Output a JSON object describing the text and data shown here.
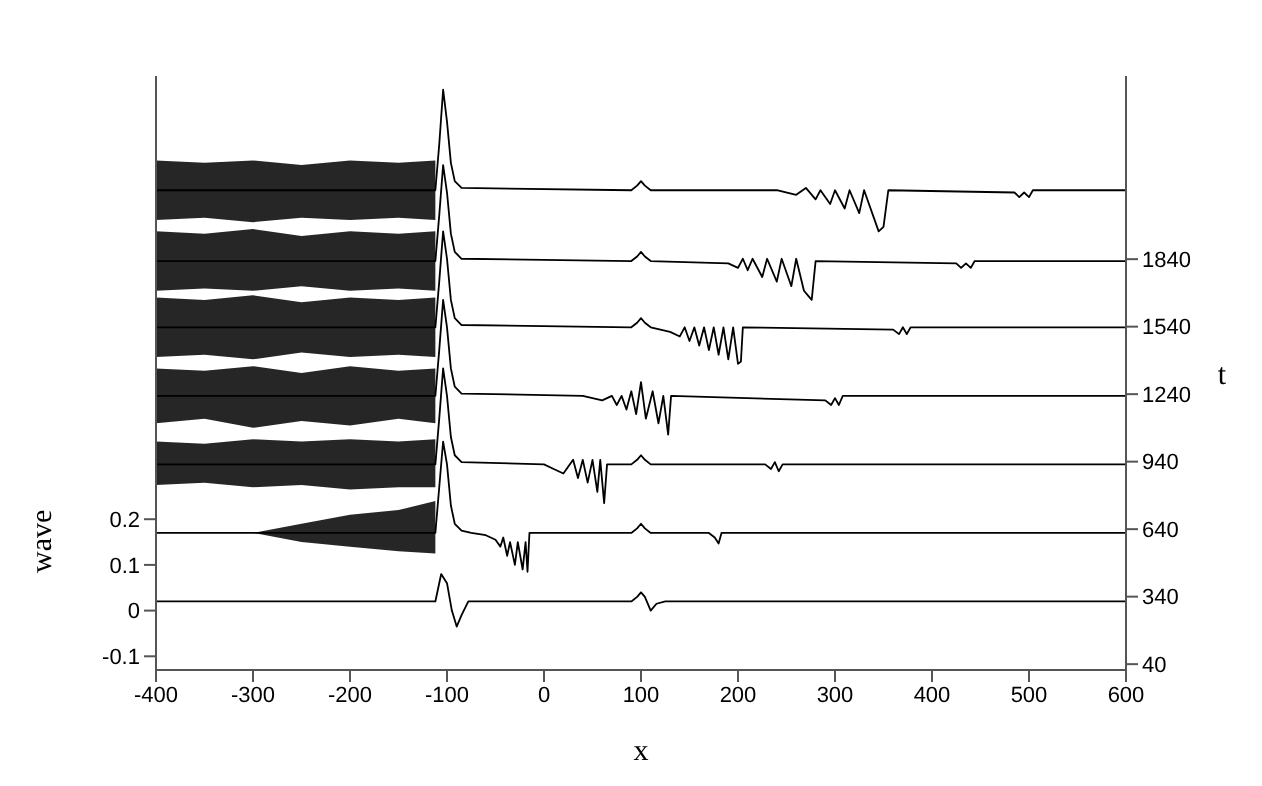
{
  "chart_data": {
    "type": "line",
    "xlabel": "x",
    "ylabel": "wave",
    "y2label": "t",
    "xlim": [
      -400,
      600
    ],
    "xticks": [
      -400,
      -300,
      -200,
      -100,
      0,
      100,
      200,
      300,
      400,
      500,
      600
    ],
    "ylim": [
      -0.13,
      1.17
    ],
    "yticks": [
      -0.1,
      0,
      0.1,
      0.2
    ],
    "y2lim": [
      14,
      2654
    ],
    "y2ticks": [
      40,
      340,
      640,
      940,
      1240,
      1540,
      1840
    ],
    "grid": false,
    "legend": false,
    "marker": "none",
    "line_style": "solid",
    "series": [
      {
        "color": "#000000",
        "x": [
          -400,
          -112,
          -106,
          -100,
          -95,
          -90,
          -85,
          -78,
          90,
          96,
          100,
          104,
          110,
          116,
          125,
          600
        ],
        "values": [
          0.02,
          0.02,
          0.08,
          0.06,
          0.0,
          -0.035,
          -0.01,
          0.02,
          0.02,
          0.03,
          0.04,
          0.03,
          0.0,
          0.015,
          0.02,
          0.02
        ]
      },
      {
        "color": "#000000",
        "x": [
          -400,
          -300,
          -250,
          -200,
          -150,
          -112,
          -108,
          -104,
          -100,
          -96,
          -92,
          -85,
          -75,
          -60,
          -50,
          -45,
          -42,
          -38,
          -35,
          -30,
          -27,
          -22,
          -19,
          -17,
          -15,
          90,
          96,
          100,
          104,
          110,
          170,
          176,
          180,
          183,
          190,
          600
        ],
        "values": [
          0.17,
          0.17,
          0.17,
          0.17,
          0.17,
          0.17,
          0.27,
          0.37,
          0.32,
          0.23,
          0.19,
          0.175,
          0.17,
          0.165,
          0.155,
          0.14,
          0.16,
          0.12,
          0.15,
          0.1,
          0.15,
          0.09,
          0.15,
          0.085,
          0.17,
          0.17,
          0.18,
          0.19,
          0.18,
          0.17,
          0.17,
          0.16,
          0.147,
          0.17,
          0.17,
          0.17
        ],
        "lower": [
          0.17,
          0.17,
          0.15,
          0.14,
          0.13,
          0.125,
          null,
          null,
          null,
          null,
          null,
          null,
          null,
          null,
          null,
          null,
          null,
          null,
          null,
          null,
          null,
          null,
          null,
          null,
          null,
          null,
          null,
          null,
          null,
          null,
          null,
          null,
          null,
          null,
          null,
          null
        ],
        "upper": [
          0.17,
          0.17,
          0.19,
          0.21,
          0.22,
          0.24,
          null,
          null,
          null,
          null,
          null,
          null,
          null,
          null,
          null,
          null,
          null,
          null,
          null,
          null,
          null,
          null,
          null,
          null,
          null,
          null,
          null,
          null,
          null,
          null,
          null,
          null,
          null,
          null,
          null,
          null
        ]
      },
      {
        "color": "#000000",
        "x": [
          -400,
          -350,
          -300,
          -250,
          -200,
          -150,
          -112,
          -108,
          -104,
          -100,
          -96,
          -92,
          -85,
          0,
          10,
          20,
          30,
          35,
          40,
          45,
          50,
          55,
          58,
          62,
          65,
          90,
          96,
          100,
          104,
          110,
          228,
          234,
          238,
          242,
          246,
          250,
          600
        ],
        "values": [
          0.32,
          0.32,
          0.32,
          0.32,
          0.32,
          0.32,
          0.32,
          0.42,
          0.53,
          0.47,
          0.38,
          0.34,
          0.325,
          0.32,
          0.31,
          0.3,
          0.33,
          0.29,
          0.33,
          0.28,
          0.33,
          0.26,
          0.33,
          0.235,
          0.32,
          0.32,
          0.33,
          0.34,
          0.33,
          0.32,
          0.32,
          0.31,
          0.325,
          0.305,
          0.32,
          0.32,
          0.32
        ],
        "lower": [
          0.275,
          0.28,
          0.27,
          0.275,
          0.265,
          0.27,
          0.27,
          null,
          null,
          null,
          null,
          null,
          null,
          null,
          null,
          null,
          null,
          null,
          null,
          null,
          null,
          null,
          null,
          null,
          null,
          null,
          null,
          null,
          null,
          null,
          null,
          null,
          null,
          null,
          null,
          null,
          null
        ],
        "upper": [
          0.37,
          0.365,
          0.375,
          0.37,
          0.375,
          0.37,
          0.375,
          null,
          null,
          null,
          null,
          null,
          null,
          null,
          null,
          null,
          null,
          null,
          null,
          null,
          null,
          null,
          null,
          null,
          null,
          null,
          null,
          null,
          null,
          null,
          null,
          null,
          null,
          null,
          null,
          null,
          null
        ]
      },
      {
        "color": "#000000",
        "x": [
          -400,
          -350,
          -300,
          -250,
          -200,
          -150,
          -112,
          -108,
          -104,
          -100,
          -96,
          -92,
          -85,
          40,
          60,
          70,
          75,
          80,
          85,
          90,
          95,
          100,
          105,
          112,
          118,
          123,
          128,
          131,
          290,
          296,
          300,
          304,
          308,
          600
        ],
        "values": [
          0.47,
          0.47,
          0.47,
          0.47,
          0.47,
          0.47,
          0.47,
          0.57,
          0.68,
          0.62,
          0.53,
          0.49,
          0.475,
          0.47,
          0.46,
          0.47,
          0.45,
          0.47,
          0.44,
          0.48,
          0.43,
          0.5,
          0.42,
          0.48,
          0.41,
          0.47,
          0.385,
          0.47,
          0.46,
          0.45,
          0.465,
          0.45,
          0.47,
          0.47
        ],
        "lower": [
          0.41,
          0.42,
          0.4,
          0.415,
          0.405,
          0.42,
          0.41,
          null,
          null,
          null,
          null,
          null,
          null,
          null,
          null,
          null,
          null,
          null,
          null,
          null,
          null,
          null,
          null,
          null,
          null,
          null,
          null,
          null,
          null,
          null,
          null,
          null,
          null,
          null
        ],
        "upper": [
          0.53,
          0.525,
          0.535,
          0.52,
          0.535,
          0.525,
          0.53,
          null,
          null,
          null,
          null,
          null,
          null,
          null,
          null,
          null,
          null,
          null,
          null,
          null,
          null,
          null,
          null,
          null,
          null,
          null,
          null,
          null,
          null,
          null,
          null,
          null,
          null,
          null
        ]
      },
      {
        "color": "#000000",
        "x": [
          -400,
          -350,
          -300,
          -250,
          -200,
          -150,
          -112,
          -108,
          -104,
          -100,
          -96,
          -92,
          -85,
          90,
          96,
          100,
          104,
          110,
          130,
          140,
          145,
          150,
          155,
          160,
          165,
          170,
          175,
          180,
          185,
          190,
          195,
          200,
          203,
          205,
          360,
          366,
          370,
          374,
          378,
          600
        ],
        "values": [
          0.62,
          0.62,
          0.62,
          0.62,
          0.62,
          0.62,
          0.62,
          0.72,
          0.83,
          0.77,
          0.68,
          0.64,
          0.625,
          0.62,
          0.63,
          0.64,
          0.63,
          0.62,
          0.61,
          0.6,
          0.62,
          0.59,
          0.62,
          0.58,
          0.62,
          0.57,
          0.62,
          0.56,
          0.62,
          0.55,
          0.62,
          0.54,
          0.545,
          0.62,
          0.615,
          0.605,
          0.62,
          0.605,
          0.62,
          0.62
        ],
        "lower": [
          0.555,
          0.56,
          0.55,
          0.565,
          0.555,
          0.56,
          0.555,
          null,
          null,
          null,
          null,
          null,
          null,
          null,
          null,
          null,
          null,
          null,
          null,
          null,
          null,
          null,
          null,
          null,
          null,
          null,
          null,
          null,
          null,
          null,
          null,
          null,
          null,
          null,
          null,
          null,
          null,
          null,
          null,
          null
        ],
        "upper": [
          0.685,
          0.68,
          0.69,
          0.675,
          0.685,
          0.68,
          0.685,
          null,
          null,
          null,
          null,
          null,
          null,
          null,
          null,
          null,
          null,
          null,
          null,
          null,
          null,
          null,
          null,
          null,
          null,
          null,
          null,
          null,
          null,
          null,
          null,
          null,
          null,
          null,
          null,
          null,
          null,
          null,
          null,
          null
        ]
      },
      {
        "color": "#000000",
        "x": [
          -400,
          -350,
          -300,
          -250,
          -200,
          -150,
          -112,
          -108,
          -104,
          -100,
          -96,
          -92,
          -85,
          90,
          96,
          100,
          104,
          110,
          190,
          200,
          205,
          210,
          215,
          225,
          230,
          240,
          245,
          255,
          260,
          268,
          272,
          276,
          280,
          425,
          430,
          435,
          440,
          444,
          600
        ],
        "values": [
          0.765,
          0.765,
          0.765,
          0.765,
          0.765,
          0.765,
          0.765,
          0.865,
          0.975,
          0.915,
          0.825,
          0.785,
          0.77,
          0.765,
          0.775,
          0.785,
          0.775,
          0.765,
          0.76,
          0.75,
          0.77,
          0.745,
          0.77,
          0.73,
          0.77,
          0.72,
          0.77,
          0.71,
          0.77,
          0.7,
          0.69,
          0.68,
          0.765,
          0.76,
          0.75,
          0.76,
          0.75,
          0.765,
          0.765
        ],
        "lower": [
          0.7,
          0.705,
          0.7,
          0.71,
          0.7,
          0.705,
          0.7,
          null,
          null,
          null,
          null,
          null,
          null,
          null,
          null,
          null,
          null,
          null,
          null,
          null,
          null,
          null,
          null,
          null,
          null,
          null,
          null,
          null,
          null,
          null,
          null,
          null,
          null,
          null,
          null,
          null,
          null,
          null,
          null
        ],
        "upper": [
          0.83,
          0.825,
          0.835,
          0.82,
          0.83,
          0.825,
          0.83,
          null,
          null,
          null,
          null,
          null,
          null,
          null,
          null,
          null,
          null,
          null,
          null,
          null,
          null,
          null,
          null,
          null,
          null,
          null,
          null,
          null,
          null,
          null,
          null,
          null,
          null,
          null,
          null,
          null,
          null,
          null,
          null
        ]
      },
      {
        "color": "#000000",
        "x": [
          -400,
          -350,
          -300,
          -250,
          -200,
          -150,
          -112,
          -108,
          -104,
          -100,
          -96,
          -92,
          -85,
          90,
          96,
          100,
          104,
          110,
          240,
          260,
          270,
          280,
          285,
          295,
          300,
          310,
          315,
          325,
          330,
          340,
          345,
          350,
          355,
          485,
          490,
          495,
          500,
          504,
          600
        ],
        "values": [
          0.92,
          0.92,
          0.92,
          0.92,
          0.92,
          0.92,
          0.92,
          1.02,
          1.14,
          1.07,
          0.98,
          0.94,
          0.925,
          0.92,
          0.93,
          0.94,
          0.93,
          0.92,
          0.92,
          0.91,
          0.925,
          0.9,
          0.92,
          0.89,
          0.92,
          0.88,
          0.92,
          0.87,
          0.92,
          0.86,
          0.83,
          0.84,
          0.92,
          0.915,
          0.905,
          0.915,
          0.905,
          0.92,
          0.92
        ],
        "lower": [
          0.855,
          0.86,
          0.85,
          0.86,
          0.855,
          0.86,
          0.855,
          null,
          null,
          null,
          null,
          null,
          null,
          null,
          null,
          null,
          null,
          null,
          null,
          null,
          null,
          null,
          null,
          null,
          null,
          null,
          null,
          null,
          null,
          null,
          null,
          null,
          null,
          null,
          null,
          null,
          null,
          null,
          null
        ],
        "upper": [
          0.985,
          0.98,
          0.985,
          0.975,
          0.985,
          0.98,
          0.985,
          null,
          null,
          null,
          null,
          null,
          null,
          null,
          null,
          null,
          null,
          null,
          null,
          null,
          null,
          null,
          null,
          null,
          null,
          null,
          null,
          null,
          null,
          null,
          null,
          null,
          null,
          null,
          null,
          null,
          null,
          null,
          null
        ]
      }
    ]
  }
}
